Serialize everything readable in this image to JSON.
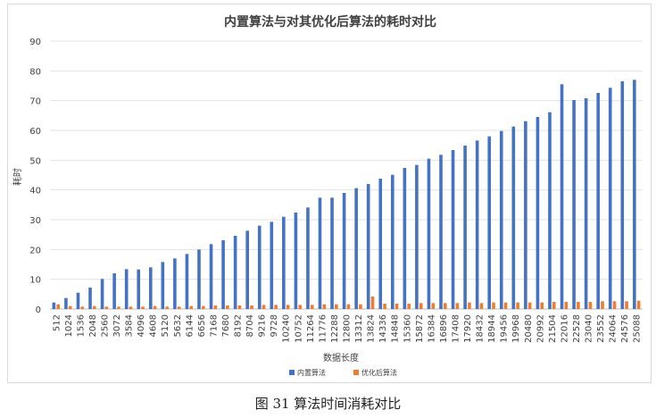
{
  "caption": "图 31 算法时间消耗对比",
  "chart_data": {
    "type": "bar",
    "title": "内置算法与对其优化后算法的耗时对比",
    "xlabel": "数据长度",
    "ylabel": "耗时",
    "ylim": [
      0,
      90
    ],
    "yticks": [
      0,
      10,
      20,
      30,
      40,
      50,
      60,
      70,
      80,
      90
    ],
    "grid": true,
    "legend_position": "bottom",
    "categories": [
      "512",
      "1024",
      "1536",
      "2048",
      "2560",
      "3072",
      "3584",
      "4096",
      "4608",
      "5120",
      "5632",
      "6144",
      "6656",
      "7168",
      "7680",
      "8192",
      "8704",
      "9216",
      "9728",
      "10240",
      "10752",
      "11264",
      "11776",
      "12288",
      "12800",
      "13312",
      "13824",
      "14336",
      "14848",
      "15360",
      "15872",
      "16384",
      "16896",
      "17408",
      "17920",
      "18432",
      "18944",
      "19456",
      "19968",
      "20480",
      "20992",
      "21504",
      "22016",
      "22528",
      "23040",
      "23552",
      "24064",
      "24576",
      "25088"
    ],
    "series": [
      {
        "name": "内置算法",
        "color": "#4472c4",
        "values": [
          2.2,
          3.7,
          5.5,
          7.2,
          10.1,
          12.0,
          13.4,
          13.3,
          14.0,
          15.8,
          17.0,
          18.5,
          20.0,
          21.8,
          23.1,
          24.6,
          26.3,
          28.0,
          29.3,
          31.0,
          32.4,
          34.1,
          37.4,
          37.4,
          39.0,
          40.6,
          42.0,
          43.8,
          45.1,
          47.4,
          48.4,
          50.5,
          51.8,
          53.4,
          54.9,
          56.6,
          58.0,
          59.8,
          61.3,
          63.1,
          64.5,
          66.1,
          75.5,
          70.2,
          70.8,
          72.6,
          74.3,
          76.5,
          77.0
        ]
      },
      {
        "name": "优化后算法",
        "color": "#ed7d31",
        "values": [
          1.6,
          1.0,
          0.8,
          1.0,
          0.8,
          0.8,
          0.8,
          0.8,
          1.0,
          0.8,
          0.8,
          1.0,
          1.0,
          1.2,
          1.2,
          1.2,
          1.2,
          1.4,
          1.4,
          1.4,
          1.4,
          1.4,
          1.6,
          1.6,
          1.6,
          1.6,
          4.2,
          1.8,
          1.8,
          1.8,
          2.0,
          2.0,
          2.0,
          2.0,
          2.2,
          2.0,
          2.2,
          2.2,
          2.2,
          2.2,
          2.2,
          2.4,
          2.4,
          2.4,
          2.4,
          2.6,
          2.6,
          2.6,
          2.8
        ]
      }
    ]
  }
}
